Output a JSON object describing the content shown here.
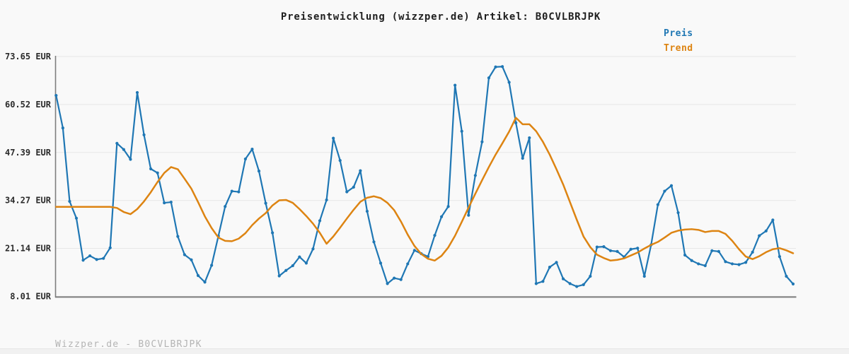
{
  "page": {
    "title": "Preisentwicklung (wizzper.de) Artikel: B0CVLBRJPK",
    "footer": "Wizzper.de - B0CVLBRJPK",
    "background_color": "#f9f9f9"
  },
  "legend": {
    "position": "top-right",
    "items": [
      {
        "label": "Preis",
        "color": "#1f77b4"
      },
      {
        "label": "Trend",
        "color": "#dd8412"
      }
    ]
  },
  "chart_data": {
    "type": "line",
    "title": "Preisentwicklung (wizzper.de) Artikel: B0CVLBRJPK",
    "xlabel": "",
    "ylabel": "",
    "currency": "EUR",
    "x_axis_labels_visible": false,
    "point_count": 110,
    "ylim": [
      8.01,
      73.65
    ],
    "grid": true,
    "colors": {
      "price": "#1f77b4",
      "trend": "#dd8412",
      "gridline": "#e7e7e7",
      "spine": "#7e7e7e",
      "tick_text": "#2b2b2b"
    },
    "y_ticks": [
      {
        "label": "73.65 EUR",
        "value": 73.65
      },
      {
        "label": "60.52 EUR",
        "value": 60.52
      },
      {
        "label": "47.39 EUR",
        "value": 47.39
      },
      {
        "label": "34.27 EUR",
        "value": 34.27
      },
      {
        "label": "21.14 EUR",
        "value": 21.14
      },
      {
        "label": "8.01 EUR",
        "value": 8.01
      }
    ],
    "series": [
      {
        "name": "Preis",
        "color": "#1f77b4",
        "markers": true,
        "values": [
          63.0,
          54.1,
          34.0,
          29.4,
          17.9,
          19.1,
          18.1,
          18.4,
          21.3,
          49.9,
          48.2,
          45.5,
          63.8,
          52.2,
          42.9,
          41.8,
          33.6,
          33.8,
          24.4,
          19.4,
          18.0,
          13.7,
          11.9,
          16.5,
          24.5,
          32.6,
          36.8,
          36.6,
          45.6,
          48.3,
          42.3,
          33.5,
          25.4,
          13.6,
          15.1,
          16.4,
          18.8,
          17.1,
          21.0,
          28.7,
          34.4,
          51.3,
          45.2,
          36.6,
          37.9,
          42.4,
          31.3,
          22.9,
          17.1,
          11.5,
          13.0,
          12.6,
          16.9,
          20.6,
          19.7,
          18.9,
          24.7,
          29.8,
          32.6,
          65.8,
          53.2,
          30.2,
          41.1,
          50.3,
          67.8,
          70.8,
          70.9,
          66.6,
          55.5,
          45.8,
          51.4,
          11.5,
          12.1,
          16.0,
          17.3,
          12.8,
          11.5,
          10.7,
          11.2,
          13.5,
          21.5,
          21.6,
          20.5,
          20.3,
          18.8,
          20.9,
          21.2,
          13.5,
          22.1,
          33.1,
          36.8,
          38.3,
          30.9,
          19.3,
          17.8,
          16.9,
          16.4,
          20.5,
          20.3,
          17.5,
          16.9,
          16.7,
          17.3,
          20.1,
          24.6,
          25.9,
          28.9,
          18.9,
          13.5,
          11.4
        ]
      },
      {
        "name": "Trend",
        "color": "#dd8412",
        "markers": false,
        "values": [
          32.5,
          32.5,
          32.5,
          32.5,
          32.5,
          32.5,
          32.5,
          32.5,
          32.5,
          32.2,
          31.1,
          30.5,
          31.9,
          34.0,
          36.5,
          39.3,
          41.8,
          43.4,
          42.8,
          40.2,
          37.5,
          33.8,
          29.9,
          26.7,
          24.1,
          23.2,
          23.1,
          23.8,
          25.3,
          27.5,
          29.3,
          30.8,
          32.9,
          34.3,
          34.4,
          33.6,
          31.9,
          30.0,
          27.9,
          25.4,
          22.4,
          24.4,
          26.8,
          29.3,
          31.7,
          33.9,
          35.0,
          35.4,
          34.9,
          33.6,
          31.6,
          28.5,
          24.9,
          21.8,
          19.6,
          18.3,
          17.8,
          19.1,
          21.4,
          24.6,
          28.4,
          32.3,
          36.1,
          39.8,
          43.4,
          46.8,
          49.9,
          53.1,
          56.9,
          55.1,
          55.1,
          53.2,
          50.3,
          46.8,
          42.8,
          38.6,
          33.8,
          29.0,
          24.4,
          21.5,
          19.4,
          18.5,
          17.8,
          18.0,
          18.4,
          19.2,
          20.0,
          21.1,
          22.1,
          22.9,
          24.1,
          25.4,
          26.0,
          26.3,
          26.4,
          26.2,
          25.6,
          25.9,
          25.9,
          25.1,
          23.2,
          20.9,
          18.9,
          18.2,
          19.0,
          20.1,
          20.9,
          21.2,
          20.6,
          19.8
        ]
      }
    ]
  }
}
